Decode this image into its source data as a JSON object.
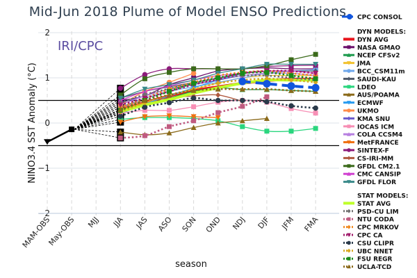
{
  "chart_data": {
    "type": "line",
    "title": "Mid-Jun 2018 Plume of Model ENSO Predictions",
    "watermark": "IRI/CPC",
    "xlabel": "season",
    "ylabel": "NINO3.4 SST Anomaly (°C)",
    "ylim": [
      -2,
      2
    ],
    "yticks": [
      -2,
      -1,
      0,
      1,
      2
    ],
    "threshold_lines": [
      0.5,
      -0.5
    ],
    "grid": true,
    "legend_position": "right",
    "categories": [
      "MAM-OBS",
      "May-OBS",
      "MJJ",
      "JJA",
      "JAS",
      "ASO",
      "SON",
      "OND",
      "NDJ",
      "DJF",
      "JFM",
      "FMA"
    ],
    "observed": {
      "name": "OBS",
      "color": "#000000",
      "values": [
        -0.42,
        -0.14
      ]
    },
    "consensus": {
      "name": "CPC CONSOL",
      "color": "#1155dd",
      "values": [
        null,
        null,
        null,
        null,
        null,
        null,
        null,
        null,
        0.92,
        0.87,
        0.82,
        0.78
      ]
    },
    "legend_headers": {
      "dyn": "DYN MODELS:",
      "stat": "STAT MODELS:"
    },
    "series": [
      {
        "name": "DYN AVG",
        "group": "dyn",
        "color": "#e8141c",
        "marker": "line",
        "dash": false,
        "thick": true,
        "values": [
          null,
          null,
          null,
          0.3,
          0.45,
          0.6,
          0.72,
          0.8,
          0.88,
          0.94,
          0.97,
          0.97
        ]
      },
      {
        "name": "NASA GMAO",
        "group": "dyn",
        "color": "#6b0f6b",
        "marker": "square",
        "dash": false,
        "values": [
          null,
          null,
          null,
          0.5,
          0.6,
          0.85,
          1.0,
          1.15,
          1.2,
          1.22,
          1.2,
          1.2
        ]
      },
      {
        "name": "NCEP CFSv2",
        "group": "dyn",
        "color": "#1c9a4c",
        "marker": "triangle",
        "dash": false,
        "values": [
          null,
          null,
          null,
          0.25,
          0.4,
          0.55,
          0.7,
          0.78,
          0.74,
          0.74,
          0.72,
          0.7
        ]
      },
      {
        "name": "JMA",
        "group": "dyn",
        "color": "#f2c230",
        "marker": "triangle-down",
        "dash": false,
        "values": [
          null,
          null,
          null,
          0.3,
          0.45,
          0.6,
          0.75,
          0.88,
          1.0,
          1.05,
          1.05,
          1.05
        ]
      },
      {
        "name": "BCC_CSM11m",
        "group": "dyn",
        "color": "#6fa8ec",
        "marker": "circle",
        "dash": false,
        "values": [
          null,
          null,
          null,
          0.35,
          0.55,
          0.7,
          0.8,
          0.9,
          1.0,
          1.1,
          1.15,
          1.18
        ]
      },
      {
        "name": "SAUDI-KAU",
        "group": "dyn",
        "color": "#505a6a",
        "marker": "diamond",
        "dash": false,
        "values": [
          null,
          null,
          null,
          0.55,
          0.7,
          0.8,
          0.9,
          1.0,
          1.1,
          1.15,
          1.15,
          1.15
        ]
      },
      {
        "name": "LDEO",
        "group": "dyn",
        "color": "#2ad67e",
        "marker": "square",
        "dash": false,
        "values": [
          null,
          null,
          null,
          0.08,
          0.12,
          0.12,
          0.1,
          0.05,
          -0.08,
          -0.18,
          -0.18,
          -0.12
        ]
      },
      {
        "name": "AUS/POAMA",
        "group": "dyn",
        "color": "#8b6a1a",
        "marker": "triangle",
        "dash": false,
        "values": [
          null,
          null,
          null,
          -0.2,
          -0.26,
          -0.22,
          -0.1,
          0.0,
          0.05,
          0.1,
          null,
          null
        ]
      },
      {
        "name": "ECMWF",
        "group": "dyn",
        "color": "#2a9cf0",
        "marker": "triangle-down",
        "dash": false,
        "values": [
          null,
          null,
          null,
          0.2,
          0.42,
          0.6,
          0.78,
          0.95,
          1.1,
          null,
          null,
          null
        ]
      },
      {
        "name": "UKMO",
        "group": "dyn",
        "color": "#ff8c4a",
        "marker": "circle",
        "dash": false,
        "values": [
          null,
          null,
          null,
          0.4,
          0.7,
          0.9,
          1.1,
          null,
          null,
          null,
          null,
          null
        ]
      },
      {
        "name": "KMA SNU",
        "group": "dyn",
        "color": "#6a5acd",
        "marker": "diamond",
        "dash": false,
        "values": [
          null,
          null,
          null,
          0.45,
          0.6,
          0.75,
          0.85,
          0.95,
          1.05,
          1.1,
          1.1,
          1.05
        ]
      },
      {
        "name": "IOCAS ICM",
        "group": "dyn",
        "color": "#f78fb5",
        "marker": "square",
        "dash": false,
        "values": [
          null,
          null,
          null,
          0.22,
          0.28,
          0.28,
          0.36,
          0.46,
          0.5,
          0.46,
          0.32,
          0.22
        ]
      },
      {
        "name": "COLA CCSM4",
        "group": "dyn",
        "color": "#b77fe0",
        "marker": "triangle",
        "dash": false,
        "values": [
          null,
          null,
          null,
          0.4,
          0.6,
          0.75,
          0.9,
          1.0,
          1.05,
          1.1,
          1.1,
          1.05
        ]
      },
      {
        "name": "MetFRANCE",
        "group": "dyn",
        "color": "#f07010",
        "marker": "triangle-down",
        "dash": false,
        "values": [
          null,
          null,
          null,
          0.02,
          0.14,
          0.16,
          0.14,
          0.12,
          null,
          null,
          null,
          null
        ]
      },
      {
        "name": "SINTEX-F",
        "group": "dyn",
        "color": "#8c1a7a",
        "marker": "circle",
        "dash": false,
        "values": [
          null,
          null,
          null,
          0.77,
          1.07,
          1.2,
          1.2,
          1.2,
          1.2,
          1.25,
          1.27,
          1.28
        ]
      },
      {
        "name": "CS-IRI-MM",
        "group": "dyn",
        "color": "#b05a40",
        "marker": "diamond",
        "dash": false,
        "values": [
          null,
          null,
          null,
          0.35,
          0.5,
          0.55,
          0.6,
          0.62,
          0.48,
          null,
          null,
          null
        ]
      },
      {
        "name": "GFDL CM2.1",
        "group": "dyn",
        "color": "#3a6a1a",
        "marker": "square",
        "dash": false,
        "values": [
          null,
          null,
          null,
          0.62,
          0.98,
          1.12,
          1.2,
          1.2,
          1.2,
          1.27,
          1.4,
          1.52
        ]
      },
      {
        "name": "CMC CANSIP",
        "group": "dyn",
        "color": "#d040d0",
        "marker": "triangle",
        "dash": false,
        "values": [
          null,
          null,
          null,
          0.5,
          0.7,
          0.82,
          0.95,
          1.05,
          1.1,
          1.15,
          1.15,
          1.1
        ]
      },
      {
        "name": "GFDL FLOR",
        "group": "dyn",
        "color": "#3a8a8a",
        "marker": "triangle-down",
        "dash": false,
        "values": [
          null,
          null,
          null,
          0.55,
          0.75,
          0.85,
          0.95,
          1.1,
          1.2,
          1.3,
          1.3,
          1.3
        ]
      },
      {
        "name": "STAT AVG",
        "group": "stat",
        "color": "#bfff2a",
        "marker": "line",
        "dash": false,
        "thick": true,
        "values": [
          null,
          null,
          null,
          0.25,
          0.4,
          0.52,
          0.66,
          0.78,
          0.88,
          0.95,
          0.95,
          0.95
        ]
      },
      {
        "name": "PSD-CU LIM",
        "group": "stat",
        "color": "#707070",
        "marker": "diamond",
        "dash": true,
        "values": [
          null,
          null,
          null,
          0.45,
          0.63,
          0.76,
          0.88,
          0.98,
          1.05,
          1.05,
          1.0,
          0.95
        ]
      },
      {
        "name": "NTU CODA",
        "group": "stat",
        "color": "#c05a80",
        "marker": "square",
        "dash": true,
        "values": [
          null,
          null,
          null,
          -0.33,
          -0.28,
          -0.08,
          0.05,
          0.23,
          0.37,
          0.58,
          null,
          null
        ]
      },
      {
        "name": "CPC MRKOV",
        "group": "stat",
        "color": "#f08a20",
        "marker": "diamond",
        "dash": true,
        "values": [
          null,
          null,
          null,
          0.35,
          0.55,
          0.75,
          0.9,
          1.05,
          1.12,
          1.15,
          1.1,
          1.05
        ]
      },
      {
        "name": "CPC CA",
        "group": "stat",
        "color": "#a01a6a",
        "marker": "triangle-down",
        "dash": true,
        "values": [
          null,
          null,
          null,
          0.4,
          0.55,
          0.7,
          0.85,
          0.97,
          1.1,
          1.15,
          1.15,
          1.1
        ]
      },
      {
        "name": "CSU CLIPR",
        "group": "stat",
        "color": "#2a3a4a",
        "marker": "circle",
        "dash": true,
        "values": [
          null,
          null,
          null,
          0.15,
          0.35,
          0.45,
          0.55,
          0.5,
          0.5,
          0.47,
          0.38,
          0.33
        ]
      },
      {
        "name": "UBC NNET",
        "group": "stat",
        "color": "#d8a820",
        "marker": "diamond",
        "dash": true,
        "values": [
          null,
          null,
          null,
          0.25,
          0.45,
          0.62,
          0.75,
          0.88,
          0.95,
          0.98,
          0.95,
          0.9
        ]
      },
      {
        "name": "FSU REGR",
        "group": "stat",
        "color": "#1a8a1a",
        "marker": "square",
        "dash": true,
        "values": [
          null,
          null,
          null,
          0.28,
          0.5,
          0.7,
          0.88,
          1.0,
          1.1,
          1.12,
          1.05,
          0.98
        ]
      },
      {
        "name": "UCLA-TCD",
        "group": "stat",
        "color": "#8b6a1a",
        "marker": "triangle",
        "dash": true,
        "values": [
          null,
          null,
          null,
          0.3,
          0.5,
          0.62,
          0.72,
          0.75,
          0.75,
          0.75,
          0.72,
          0.7
        ]
      }
    ]
  }
}
